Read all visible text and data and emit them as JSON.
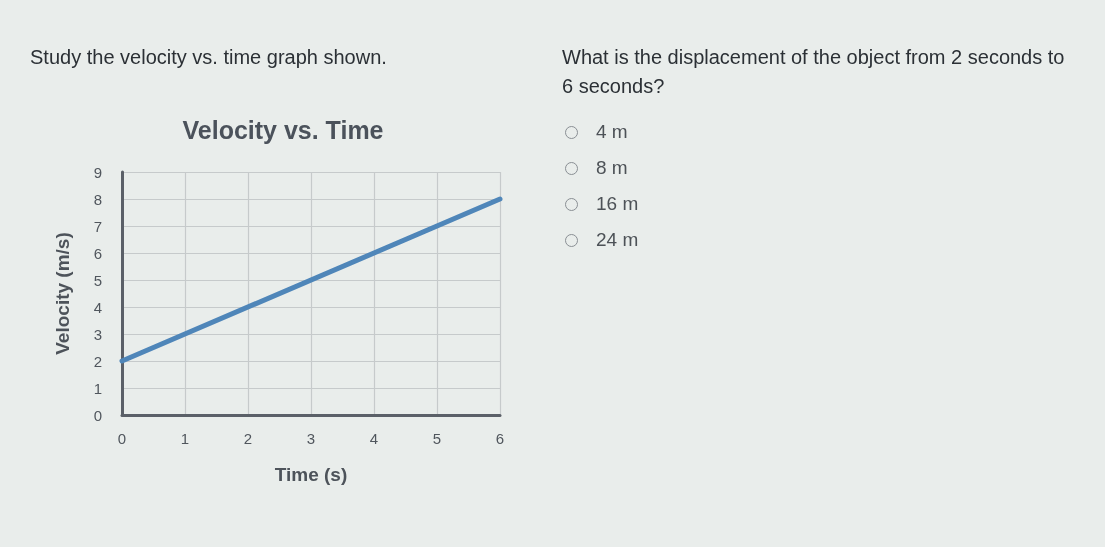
{
  "chart_data": {
    "type": "line",
    "title": "Velocity vs. Time",
    "xlabel": "Time (s)",
    "ylabel": "Velocity (m/s)",
    "x": [
      0,
      6
    ],
    "series": [
      {
        "color": "#4f86b9",
        "values": [
          2,
          8
        ]
      }
    ],
    "xlim": [
      0,
      6
    ],
    "ylim": [
      0,
      9
    ],
    "xticks": [
      0,
      1,
      2,
      3,
      4,
      5,
      6
    ],
    "yticks": [
      0,
      1,
      2,
      3,
      4,
      5,
      6,
      7,
      8,
      9
    ],
    "grid": true,
    "marker": "none",
    "line_style": "solid",
    "annotations": [
      "Study the velocity vs. time graph shown.",
      "What is the displacement of the object from 2 seconds to 6 seconds?",
      "4 m",
      "8 m",
      "16 m",
      "24 m"
    ]
  }
}
